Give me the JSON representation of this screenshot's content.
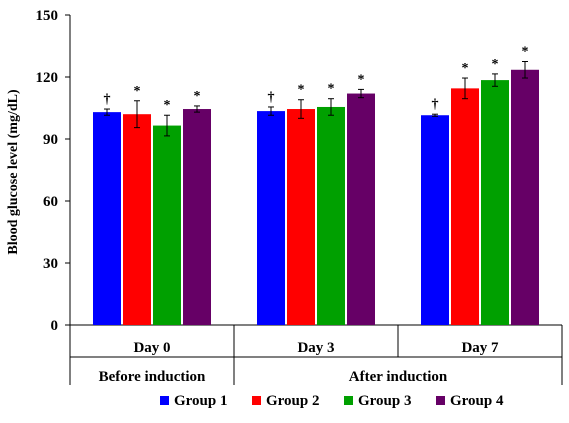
{
  "chart_data": {
    "type": "bar",
    "ylabel": "Blood glucose level (mg/dL)",
    "ylim": [
      0,
      150
    ],
    "yticks": [
      0,
      30,
      60,
      90,
      120,
      150
    ],
    "categories": [
      "Day 0",
      "Day 3",
      "Day 7"
    ],
    "groups": [
      {
        "label": "Before induction",
        "categories": [
          "Day 0"
        ]
      },
      {
        "label": "After induction",
        "categories": [
          "Day 3",
          "Day 7"
        ]
      }
    ],
    "series": [
      {
        "name": "Group 1",
        "color": "#0000ff",
        "values": [
          103,
          103.5,
          101.5
        ],
        "errors": [
          1.5,
          2,
          0.5
        ],
        "marks": [
          "†",
          "†",
          "†"
        ]
      },
      {
        "name": "Group 2",
        "color": "#ff0000",
        "values": [
          102,
          104.5,
          114.5
        ],
        "errors": [
          6.5,
          4.5,
          5
        ],
        "marks": [
          "*",
          "*",
          "*"
        ]
      },
      {
        "name": "Group 3",
        "color": "#00a000",
        "values": [
          96.5,
          105.5,
          118.5
        ],
        "errors": [
          5,
          4,
          3
        ],
        "marks": [
          "*",
          "*",
          "*"
        ]
      },
      {
        "name": "Group 4",
        "color": "#660066",
        "values": [
          104.5,
          112,
          123.5
        ],
        "errors": [
          1.5,
          2,
          4
        ],
        "marks": [
          "*",
          "*",
          "*"
        ]
      }
    ],
    "grid": false,
    "legend_position": "bottom"
  }
}
